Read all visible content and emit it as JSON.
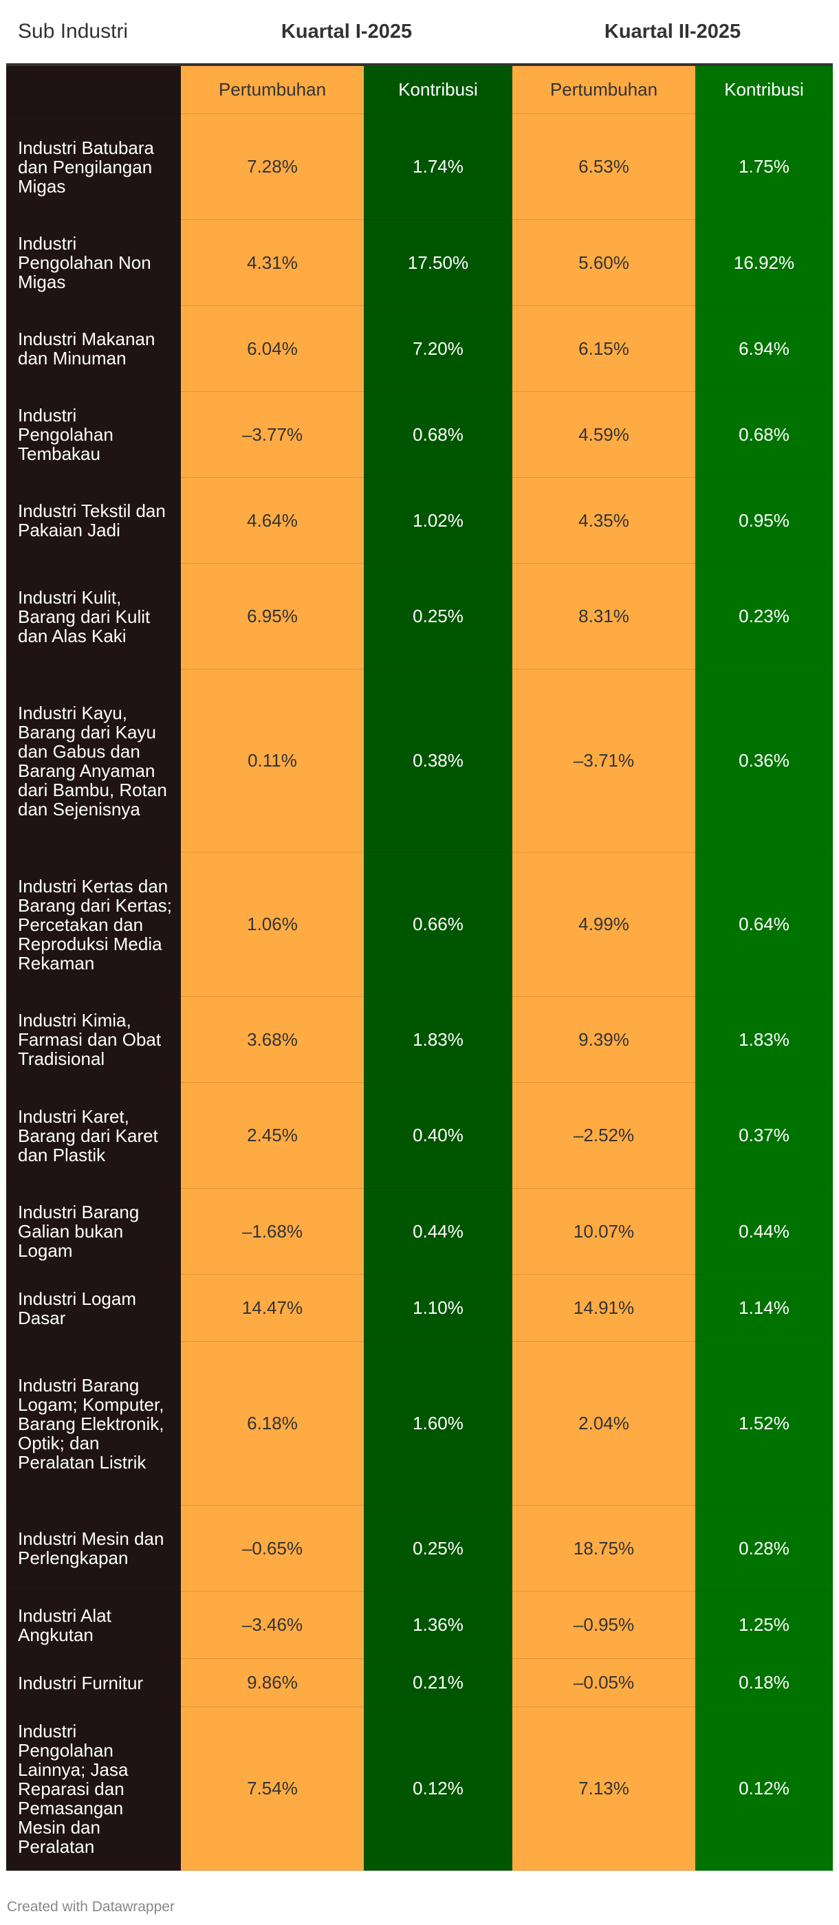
{
  "chart_data": {
    "type": "table",
    "header": {
      "sub_industri": "Sub Industri",
      "quarters": [
        "Kuartal I-2025",
        "Kuartal II-2025"
      ],
      "metrics": [
        "Pertumbuhan",
        "Kontribusi",
        "Pertumbuhan",
        "Kontribusi"
      ]
    },
    "rows": [
      {
        "name": "Industri Batubara dan Pengilangan Migas",
        "q1_growth": "7.28%",
        "q1_contrib": "1.74%",
        "q2_growth": "6.53%",
        "q2_contrib": "1.75%"
      },
      {
        "name": "Industri Pengolahan Non Migas",
        "q1_growth": "4.31%",
        "q1_contrib": "17.50%",
        "q2_growth": "5.60%",
        "q2_contrib": "16.92%"
      },
      {
        "name": "Industri Makanan dan Minuman",
        "q1_growth": "6.04%",
        "q1_contrib": "7.20%",
        "q2_growth": "6.15%",
        "q2_contrib": "6.94%"
      },
      {
        "name": "Industri Pengolahan Tembakau",
        "q1_growth": "–3.77%",
        "q1_contrib": "0.68%",
        "q2_growth": "4.59%",
        "q2_contrib": "0.68%"
      },
      {
        "name": "Industri Tekstil dan Pakaian Jadi",
        "q1_growth": "4.64%",
        "q1_contrib": "1.02%",
        "q2_growth": "4.35%",
        "q2_contrib": "0.95%"
      },
      {
        "name": "Industri Kulit, Barang dari Kulit dan Alas Kaki",
        "q1_growth": "6.95%",
        "q1_contrib": "0.25%",
        "q2_growth": "8.31%",
        "q2_contrib": "0.23%"
      },
      {
        "name": "Industri Kayu, Barang dari Kayu dan Gabus dan Barang Anyaman dari Bambu, Rotan dan Sejenisnya",
        "q1_growth": "0.11%",
        "q1_contrib": "0.38%",
        "q2_growth": "–3.71%",
        "q2_contrib": "0.36%"
      },
      {
        "name": "Industri Kertas dan Barang dari Kertas; Percetakan dan Reproduksi Media Rekaman",
        "q1_growth": "1.06%",
        "q1_contrib": "0.66%",
        "q2_growth": "4.99%",
        "q2_contrib": "0.64%"
      },
      {
        "name": "Industri Kimia, Farmasi dan Obat Tradisional",
        "q1_growth": "3.68%",
        "q1_contrib": "1.83%",
        "q2_growth": "9.39%",
        "q2_contrib": "1.83%"
      },
      {
        "name": "Industri Karet, Barang dari Karet dan Plastik",
        "q1_growth": "2.45%",
        "q1_contrib": "0.40%",
        "q2_growth": "–2.52%",
        "q2_contrib": "0.37%"
      },
      {
        "name": "Industri Barang Galian bukan Logam",
        "q1_growth": "–1.68%",
        "q1_contrib": "0.44%",
        "q2_growth": "10.07%",
        "q2_contrib": "0.44%"
      },
      {
        "name": "Industri Logam Dasar",
        "q1_growth": "14.47%",
        "q1_contrib": "1.10%",
        "q2_growth": "14.91%",
        "q2_contrib": "1.14%"
      },
      {
        "name": "Industri Barang Logam; Komputer, Barang Elektronik, Optik; dan Peralatan Listrik",
        "q1_growth": "6.18%",
        "q1_contrib": "1.60%",
        "q2_growth": "2.04%",
        "q2_contrib": "1.52%"
      },
      {
        "name": "Industri Mesin dan Perlengkapan",
        "q1_growth": "–0.65%",
        "q1_contrib": "0.25%",
        "q2_growth": "18.75%",
        "q2_contrib": "0.28%"
      },
      {
        "name": "Industri Alat Angkutan",
        "q1_growth": "–3.46%",
        "q1_contrib": "1.36%",
        "q2_growth": "–0.95%",
        "q2_contrib": "1.25%"
      },
      {
        "name": "Industri Furnitur",
        "q1_growth": "9.86%",
        "q1_contrib": "0.21%",
        "q2_growth": "–0.05%",
        "q2_contrib": "0.18%"
      },
      {
        "name": "Industri Pengolahan Lainnya; Jasa Reparasi dan Pemasangan Mesin dan Peralatan",
        "q1_growth": "7.54%",
        "q1_contrib": "0.12%",
        "q2_growth": "7.13%",
        "q2_contrib": "0.12%"
      }
    ],
    "colors": {
      "sub_industri_column": "#1f1413",
      "growth_columns": "#ffab44",
      "contribution_q1": "#005500",
      "contribution_q2": "#007200"
    }
  },
  "footer": {
    "credit": "Created with Datawrapper"
  }
}
